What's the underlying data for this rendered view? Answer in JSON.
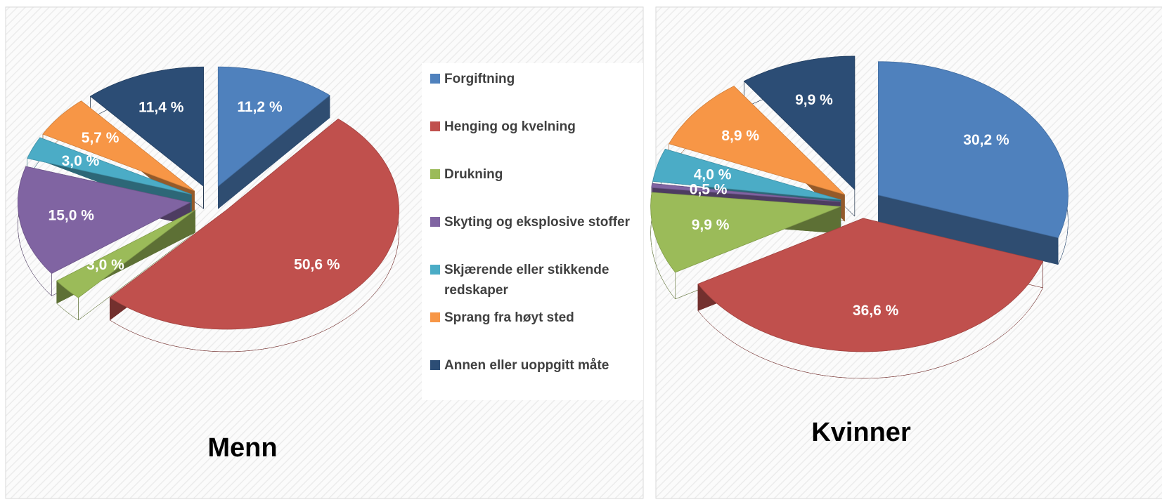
{
  "chart_data": [
    {
      "type": "pie",
      "title": "Menn",
      "categories": [
        "Forgiftning",
        "Henging og kvelning",
        "Drukning",
        "Skyting og eksplosive stoffer",
        "Skjærende eller stikkende redskaper",
        "Sprang fra høyt sted",
        "Annen eller uoppgitt måte"
      ],
      "values": [
        11.2,
        50.6,
        3.0,
        15.0,
        3.0,
        5.7,
        11.4
      ],
      "value_labels": [
        "11,2 %",
        "50,6 %",
        "3,0 %",
        "15,0 %",
        "3,0 %",
        "5,7 %",
        "11,4 %"
      ],
      "colors": [
        "#4f81bd",
        "#c0504d",
        "#9bbb59",
        "#8064a2",
        "#4bacc6",
        "#f79646",
        "#2c4d75"
      ],
      "legend": "right"
    },
    {
      "type": "pie",
      "title": "Kvinner",
      "values": [
        30.2,
        36.6,
        9.9,
        0.5,
        4.0,
        8.9,
        9.9
      ],
      "value_labels": [
        "30,2 %",
        "36,6 %",
        "9,9 %",
        "0,5 %",
        "4,0 %",
        "8,9 %",
        "9,9 %"
      ],
      "colors": [
        "#4f81bd",
        "#c0504d",
        "#9bbb59",
        "#8064a2",
        "#4bacc6",
        "#f79646",
        "#2c4d75"
      ]
    }
  ]
}
